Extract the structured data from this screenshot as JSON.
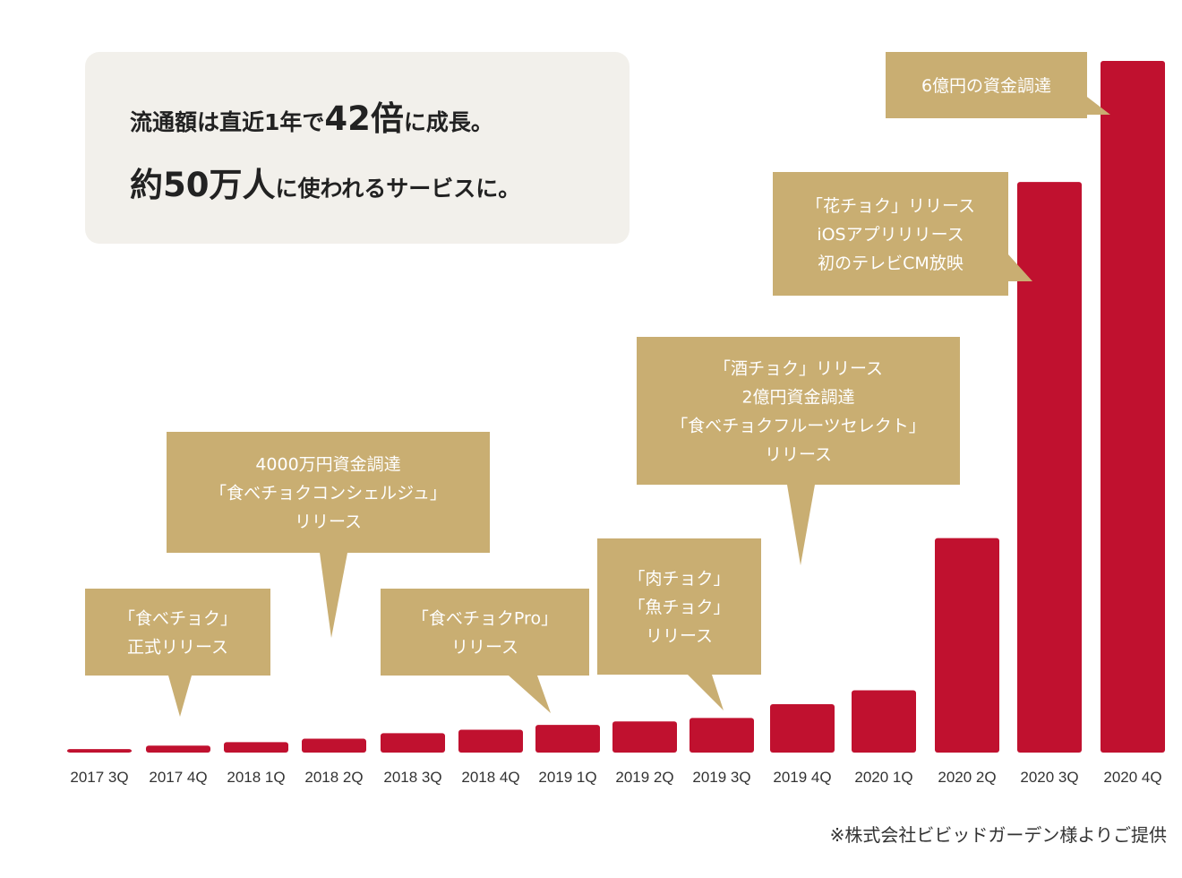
{
  "headline": {
    "line1_pre": "流通額は直近1年で",
    "line1_big": "42倍",
    "line1_post": "に成長。",
    "line2_big": "約50万人",
    "line2_post": "に使われるサービスに。"
  },
  "credit": "※株式会社ビビッドガーデン様よりご提供",
  "colors": {
    "bar": "#c0112f",
    "callout": "#c9ae72",
    "headline_bg": "#f2f0eb"
  },
  "chart_data": {
    "type": "bar",
    "categories": [
      "2017 3Q",
      "2017 4Q",
      "2018 1Q",
      "2018 2Q",
      "2018 3Q",
      "2018 4Q",
      "2019 1Q",
      "2019 2Q",
      "2019 3Q",
      "2019 4Q",
      "2020 1Q",
      "2020 2Q",
      "2020 3Q",
      "2020 4Q"
    ],
    "values": [
      0.5,
      1,
      1.5,
      2,
      2.8,
      3.3,
      4,
      4.5,
      5,
      7,
      9,
      31,
      82.5,
      100
    ],
    "title": "",
    "xlabel": "",
    "ylabel": "",
    "ylim": [
      0,
      100
    ],
    "y_axis_shown": false,
    "grid": false,
    "legend": "none",
    "annotations": [
      {
        "category": "2017 4Q",
        "lines": [
          "「食べチョク」",
          "正式リリース"
        ]
      },
      {
        "category": "2018 2Q",
        "lines": [
          "4000万円資金調達",
          "「食べチョクコンシェルジュ」",
          "リリース"
        ]
      },
      {
        "category": "2019 1Q",
        "lines": [
          "「食べチョクPro」",
          "リリース"
        ]
      },
      {
        "category": "2019 3Q",
        "lines": [
          "「肉チョク」",
          "「魚チョク」",
          "リリース"
        ]
      },
      {
        "category": "2019 4Q",
        "lines": [
          "「酒チョク」リリース",
          "2億円資金調達",
          "「食べチョクフルーツセレクト」",
          "リリース"
        ]
      },
      {
        "category": "2020 3Q",
        "lines": [
          "「花チョク」リリース",
          "iOSアプリリリース",
          "初のテレビCM放映"
        ]
      },
      {
        "category": "2020 4Q",
        "lines": [
          "6億円の資金調達"
        ]
      }
    ]
  }
}
